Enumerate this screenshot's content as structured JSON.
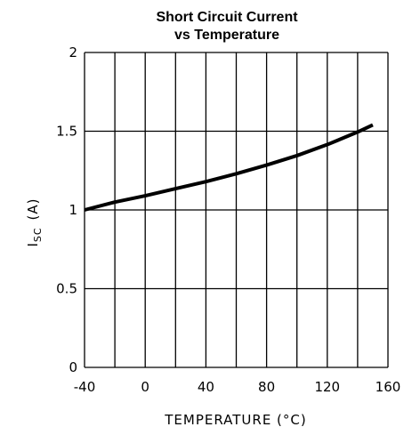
{
  "chart_data": {
    "type": "line",
    "title_line1": "Short Circuit Current",
    "title_line2": "vs Temperature",
    "xlabel": "TEMPERATURE (°C)",
    "ylabel_main": "I",
    "ylabel_sub": "SC",
    "ylabel_unit": "(A)",
    "xlim": [
      -40,
      160
    ],
    "ylim": [
      0,
      2
    ],
    "grid": true,
    "x_ticks": [
      {
        "value": -40,
        "label": "-40"
      },
      {
        "value": 0,
        "label": "0"
      },
      {
        "value": 40,
        "label": "40"
      },
      {
        "value": 80,
        "label": "80"
      },
      {
        "value": 120,
        "label": "120"
      },
      {
        "value": 160,
        "label": "160"
      }
    ],
    "y_ticks": [
      {
        "value": 0,
        "label": "0"
      },
      {
        "value": 0.5,
        "label": "0.5"
      },
      {
        "value": 1,
        "label": "1"
      },
      {
        "value": 1.5,
        "label": "1.5"
      },
      {
        "value": 2,
        "label": "2"
      }
    ],
    "x_gridlines": [
      -40,
      -20,
      0,
      20,
      40,
      60,
      80,
      100,
      120,
      140,
      160
    ],
    "y_gridlines": [
      0,
      0.5,
      1,
      1.5,
      2
    ],
    "series": [
      {
        "x": [
          -40,
          -20,
          0,
          20,
          40,
          60,
          80,
          100,
          120,
          140,
          150
        ],
        "y": [
          1.0,
          1.05,
          1.09,
          1.135,
          1.18,
          1.23,
          1.285,
          1.345,
          1.415,
          1.495,
          1.54
        ]
      }
    ]
  }
}
